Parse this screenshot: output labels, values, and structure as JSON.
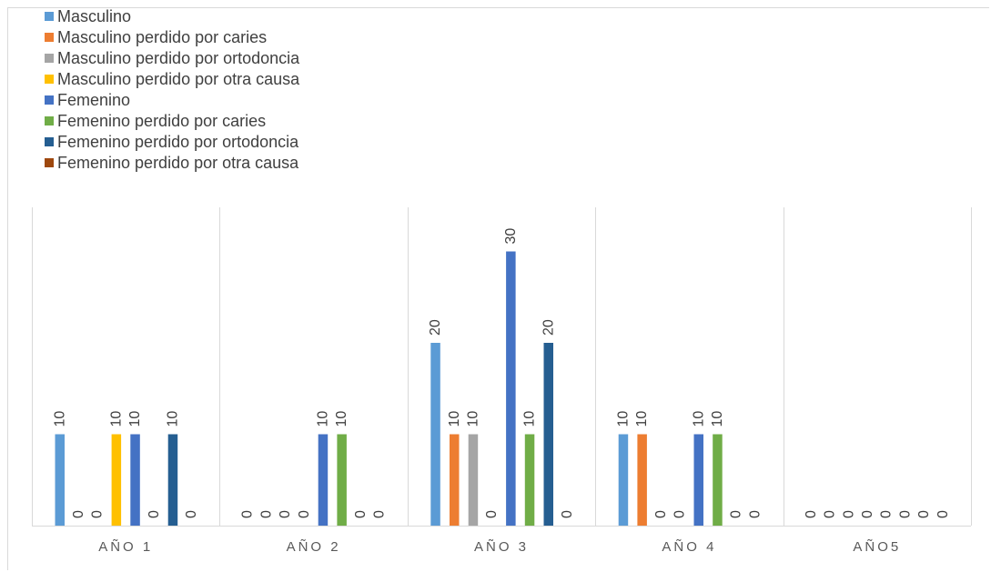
{
  "chart_data": {
    "type": "bar",
    "categories": [
      "AÑO 1",
      "AÑO 2",
      "AÑO 3",
      "AÑO 4",
      "AÑO5"
    ],
    "series": [
      {
        "name": "Masculino",
        "color": "#5B9BD5",
        "values": [
          10,
          0,
          20,
          10,
          0
        ]
      },
      {
        "name": "Masculino perdido por caries",
        "color": "#ED7D31",
        "values": [
          0,
          0,
          10,
          10,
          0
        ]
      },
      {
        "name": "Masculino perdido por ortodoncia",
        "color": "#A5A5A5",
        "values": [
          0,
          0,
          10,
          0,
          0
        ]
      },
      {
        "name": "Masculino perdido por otra causa",
        "color": "#FFC000",
        "values": [
          10,
          0,
          0,
          0,
          0
        ]
      },
      {
        "name": "Femenino",
        "color": "#4472C4",
        "values": [
          10,
          10,
          30,
          10,
          0
        ]
      },
      {
        "name": "Femenino perdido por caries",
        "color": "#70AD47",
        "values": [
          0,
          10,
          10,
          10,
          0
        ]
      },
      {
        "name": "Femenino perdido por ortodoncia",
        "color": "#255E91",
        "values": [
          10,
          0,
          20,
          0,
          0
        ]
      },
      {
        "name": "Femenino perdido por otra causa",
        "color": "#9E480E",
        "values": [
          0,
          0,
          0,
          0,
          0
        ]
      }
    ],
    "ylim": [
      0,
      35
    ],
    "grid": "vertical category separators",
    "legend_position": "top-left",
    "data_labels": true
  }
}
